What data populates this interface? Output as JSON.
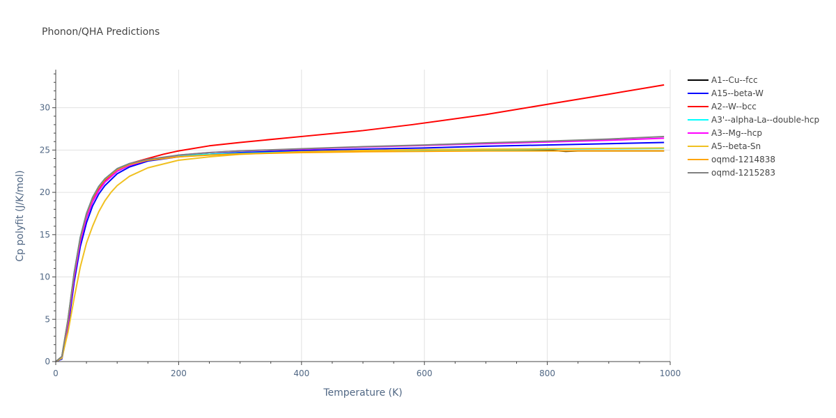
{
  "chart_data": {
    "type": "line",
    "title": "Phonon/QHA Predictions",
    "xlabel": "Temperature (K)",
    "ylabel": "Cp polyfit (J/K/mol)",
    "xlim": [
      0,
      1000
    ],
    "ylim": [
      0,
      34.5
    ],
    "x_ticks": [
      "0",
      "200",
      "400",
      "600",
      "800",
      "1000"
    ],
    "y_ticks": [
      "0",
      "5",
      "10",
      "15",
      "20",
      "25",
      "30"
    ],
    "grid": true,
    "legend_position": "right",
    "series": [
      {
        "name": "A1--Cu--fcc",
        "color": "#000000",
        "x": [
          0,
          10,
          20,
          30,
          40,
          50,
          60,
          70,
          80,
          100,
          120,
          150,
          200,
          250,
          300,
          400,
          500,
          600,
          700,
          800,
          820,
          830,
          850,
          900,
          990
        ],
        "y": [
          0,
          0.5,
          4.5,
          10,
          14.2,
          17,
          18.9,
          20.2,
          21.2,
          22.5,
          23.2,
          23.8,
          24.3,
          24.5,
          24.6,
          24.75,
          24.85,
          24.9,
          24.95,
          25.0,
          24.9,
          24.85,
          24.9,
          24.9,
          24.9
        ]
      },
      {
        "name": "A15--beta-W",
        "color": "#0000ff",
        "x": [
          0,
          10,
          20,
          30,
          40,
          50,
          60,
          70,
          80,
          100,
          120,
          150,
          200,
          250,
          300,
          400,
          500,
          600,
          700,
          800,
          900,
          990
        ],
        "y": [
          0,
          0.3,
          4,
          9.4,
          13.6,
          16.4,
          18.4,
          19.8,
          20.8,
          22.2,
          23.0,
          23.7,
          24.2,
          24.5,
          24.7,
          24.95,
          25.1,
          25.25,
          25.45,
          25.6,
          25.75,
          25.9
        ]
      },
      {
        "name": "A2--W--bcc",
        "color": "#ff0000",
        "x": [
          0,
          10,
          20,
          30,
          40,
          50,
          60,
          70,
          80,
          100,
          120,
          150,
          175,
          200,
          250,
          300,
          400,
          500,
          580,
          700,
          800,
          900,
          990
        ],
        "y": [
          0,
          0.5,
          4.6,
          10.1,
          14.3,
          17.1,
          19.0,
          20.3,
          21.3,
          22.7,
          23.4,
          24.0,
          24.5,
          24.9,
          25.5,
          25.9,
          26.6,
          27.3,
          28.0,
          29.2,
          30.4,
          31.6,
          32.7
        ]
      },
      {
        "name": "A3'--alpha-La--double-hcp",
        "color": "#00ffff",
        "x": [
          0,
          10,
          20,
          30,
          40,
          50,
          60,
          70,
          80,
          100,
          120,
          150,
          200,
          250,
          300,
          400,
          500,
          600,
          700,
          800,
          900,
          990
        ],
        "y": [
          0,
          0.6,
          5.0,
          10.5,
          14.7,
          17.5,
          19.4,
          20.7,
          21.6,
          22.8,
          23.4,
          23.9,
          24.3,
          24.5,
          24.6,
          24.8,
          24.9,
          25.0,
          25.05,
          25.1,
          25.15,
          25.2
        ]
      },
      {
        "name": "A3--Mg--hcp",
        "color": "#ff00ff",
        "x": [
          0,
          10,
          20,
          30,
          40,
          50,
          60,
          70,
          80,
          100,
          120,
          150,
          200,
          250,
          300,
          400,
          500,
          600,
          700,
          800,
          900,
          990
        ],
        "y": [
          0,
          0.5,
          4.6,
          10.0,
          14.2,
          17.0,
          18.9,
          20.2,
          21.2,
          22.5,
          23.2,
          23.8,
          24.4,
          24.7,
          24.9,
          25.1,
          25.35,
          25.55,
          25.75,
          25.95,
          26.15,
          26.4
        ]
      },
      {
        "name": "A5--beta-Sn",
        "color": "#f0c020",
        "x": [
          0,
          10,
          20,
          30,
          40,
          50,
          60,
          70,
          80,
          90,
          100,
          120,
          150,
          200,
          250,
          300,
          400,
          500,
          600,
          700,
          800,
          900,
          990
        ],
        "y": [
          0,
          0.4,
          3.5,
          7.5,
          11.2,
          14.0,
          16.0,
          17.7,
          19.0,
          20.0,
          20.8,
          21.9,
          22.9,
          23.8,
          24.2,
          24.5,
          24.8,
          24.95,
          25.05,
          25.1,
          25.15,
          25.2,
          25.25
        ]
      },
      {
        "name": "oqmd-1214838",
        "color": "#ffa500",
        "x": [
          0,
          10,
          20,
          30,
          40,
          50,
          60,
          70,
          80,
          100,
          120,
          150,
          200,
          250,
          300,
          400,
          500,
          600,
          700,
          800,
          900,
          990
        ],
        "y": [
          0,
          0.6,
          5.0,
          10.4,
          14.6,
          17.4,
          19.3,
          20.6,
          21.5,
          22.7,
          23.3,
          23.8,
          24.2,
          24.4,
          24.55,
          24.7,
          24.8,
          24.85,
          24.9,
          24.9,
          24.9,
          24.9
        ]
      },
      {
        "name": "oqmd-1215283",
        "color": "#808080",
        "x": [
          0,
          10,
          20,
          30,
          40,
          50,
          60,
          70,
          80,
          100,
          120,
          150,
          200,
          250,
          300,
          400,
          500,
          600,
          700,
          800,
          900,
          990
        ],
        "y": [
          0,
          0.6,
          5.0,
          10.5,
          14.7,
          17.5,
          19.4,
          20.7,
          21.6,
          22.8,
          23.4,
          23.9,
          24.4,
          24.7,
          24.9,
          25.15,
          25.4,
          25.6,
          25.85,
          26.05,
          26.3,
          26.6
        ]
      }
    ]
  }
}
